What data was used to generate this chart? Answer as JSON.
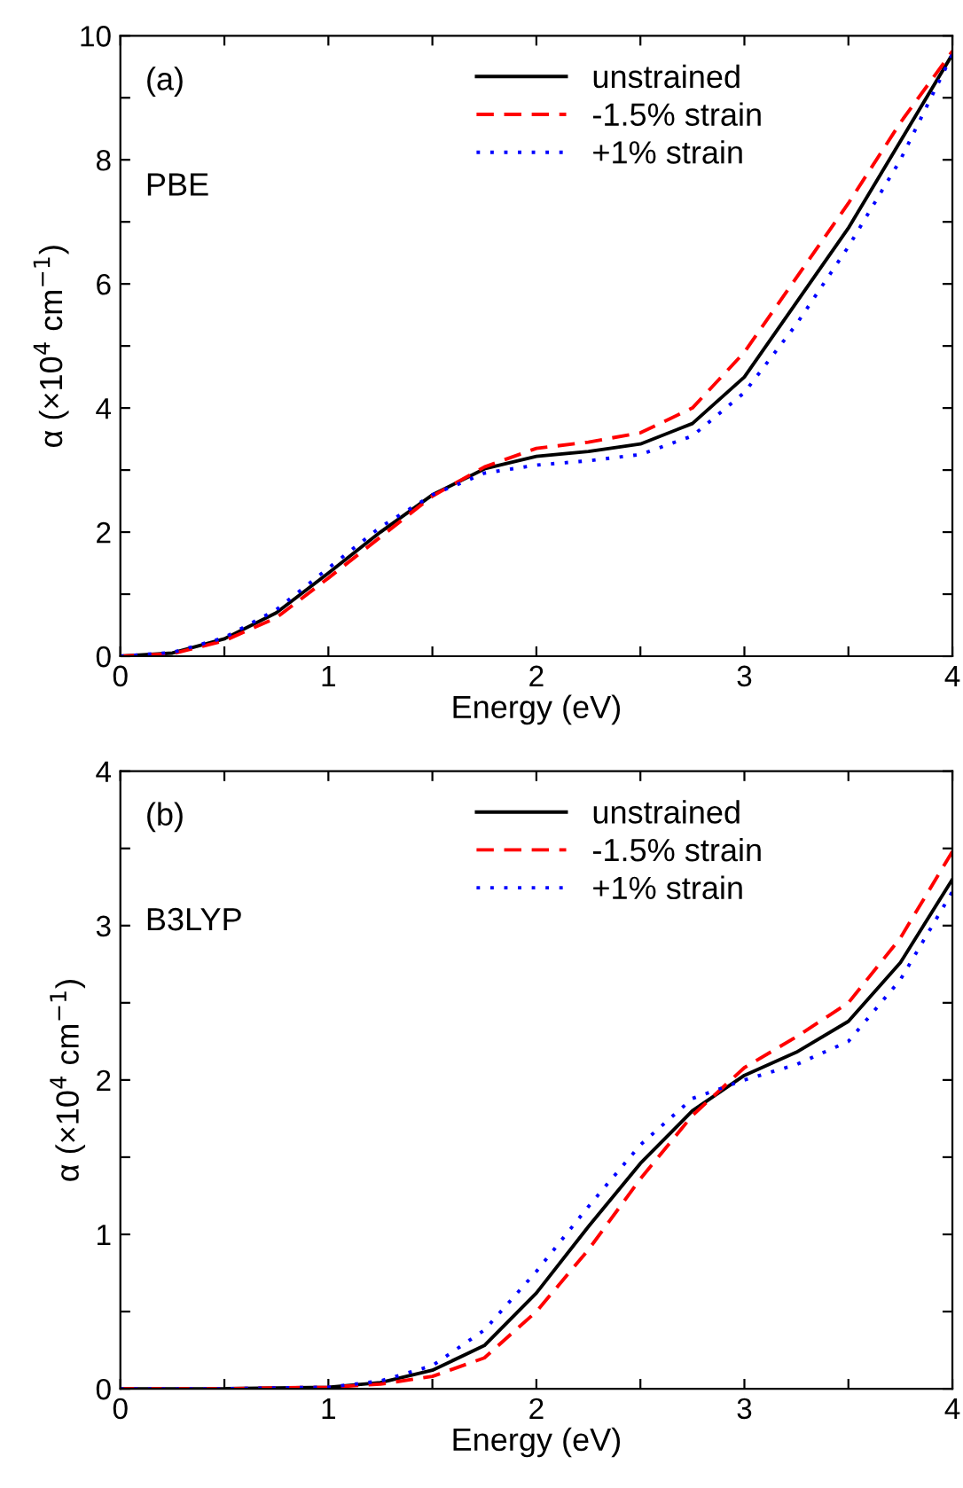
{
  "chart_data": [
    {
      "type": "line",
      "xlabel": "Energy (eV)",
      "ylabel": "α (×10$^{4}$ cm$^{−1}$)",
      "annotations": [
        "(a)",
        "PBE"
      ],
      "legend": "top",
      "grid": false,
      "xlim": [
        0,
        4
      ],
      "ylim": [
        0,
        10
      ],
      "xticks": [
        0,
        {
          "value": 0.5,
          "label": null
        },
        1,
        {
          "value": 1.5,
          "label": null
        },
        2,
        {
          "value": 2.5,
          "label": null
        },
        3,
        {
          "value": 3.5,
          "label": null
        },
        4
      ],
      "yticks": [
        0,
        {
          "value": 1,
          "label": null
        },
        2,
        {
          "value": 3,
          "label": null
        },
        4,
        {
          "value": 5,
          "label": null
        },
        6,
        {
          "value": 7,
          "label": null
        },
        8,
        {
          "value": 9,
          "label": null
        },
        10
      ],
      "x": [
        0,
        0.25,
        0.5,
        0.75,
        1.0,
        1.25,
        1.5,
        1.75,
        2.0,
        2.25,
        2.5,
        2.75,
        3.0,
        3.25,
        3.5,
        3.75,
        4.0
      ],
      "series": [
        {
          "name": "unstrained",
          "color": "#000000",
          "line_style": "solid",
          "values": [
            0,
            0.05,
            0.28,
            0.7,
            1.34,
            2.0,
            2.6,
            3.02,
            3.22,
            3.3,
            3.42,
            3.75,
            4.5,
            5.7,
            6.9,
            8.3,
            9.7
          ]
        },
        {
          "name": "-1.5% strain",
          "color": "#ff0000",
          "line_style": "dashed",
          "values": [
            0,
            0.04,
            0.25,
            0.62,
            1.26,
            1.92,
            2.58,
            3.05,
            3.35,
            3.45,
            3.6,
            4.0,
            4.9,
            6.1,
            7.3,
            8.6,
            9.75
          ]
        },
        {
          "name": "+1% strain",
          "color": "#0000ff",
          "line_style": "dotted",
          "values": [
            0,
            0.06,
            0.3,
            0.75,
            1.42,
            2.08,
            2.6,
            2.95,
            3.08,
            3.15,
            3.25,
            3.55,
            4.25,
            5.35,
            6.6,
            8.0,
            9.7
          ]
        }
      ]
    },
    {
      "type": "line",
      "xlabel": "Energy (eV)",
      "ylabel": "α (×10$^{4}$ cm$^{−1}$)",
      "annotations": [
        "(b)",
        "B3LYP"
      ],
      "legend": "top",
      "grid": false,
      "xlim": [
        0,
        4
      ],
      "ylim": [
        0,
        4
      ],
      "xticks": [
        0,
        {
          "value": 0.5,
          "label": null
        },
        1,
        {
          "value": 1.5,
          "label": null
        },
        2,
        {
          "value": 2.5,
          "label": null
        },
        3,
        {
          "value": 3.5,
          "label": null
        },
        4
      ],
      "yticks": [
        0,
        {
          "value": 0.5,
          "label": null
        },
        1,
        {
          "value": 1.5,
          "label": null
        },
        2,
        {
          "value": 2.5,
          "label": null
        },
        3,
        {
          "value": 3.5,
          "label": null
        },
        4
      ],
      "x": [
        0,
        0.5,
        1.0,
        1.25,
        1.5,
        1.75,
        2.0,
        2.25,
        2.5,
        2.75,
        3.0,
        3.25,
        3.5,
        3.75,
        4.0
      ],
      "series": [
        {
          "name": "unstrained",
          "color": "#000000",
          "line_style": "solid",
          "values": [
            0,
            0,
            0.01,
            0.04,
            0.12,
            0.28,
            0.62,
            1.05,
            1.46,
            1.8,
            2.03,
            2.18,
            2.38,
            2.76,
            3.3
          ]
        },
        {
          "name": "-1.5% strain",
          "color": "#ff0000",
          "line_style": "dashed",
          "values": [
            0,
            0,
            0.01,
            0.03,
            0.08,
            0.2,
            0.5,
            0.9,
            1.36,
            1.77,
            2.08,
            2.28,
            2.5,
            2.92,
            3.48
          ]
        },
        {
          "name": "+1% strain",
          "color": "#0000ff",
          "line_style": "dotted",
          "values": [
            0,
            0,
            0.01,
            0.05,
            0.15,
            0.38,
            0.76,
            1.18,
            1.58,
            1.88,
            2.0,
            2.1,
            2.25,
            2.65,
            3.22
          ]
        }
      ]
    }
  ]
}
